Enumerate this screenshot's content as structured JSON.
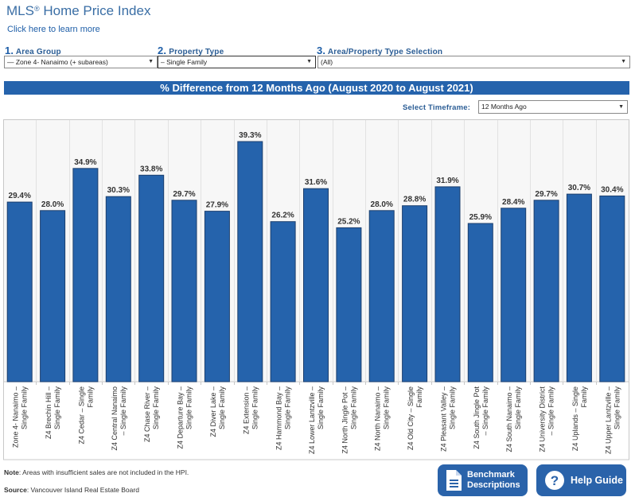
{
  "header": {
    "title": "MLS",
    "title_sup": "®",
    "title_rest": " Home Price Index",
    "learn_link": "Click here to learn more"
  },
  "filters": [
    {
      "num": "1.",
      "label": "Area Group",
      "value": "— Zone 4- Nanaimo (+ subareas)"
    },
    {
      "num": "2.",
      "label": "Property Type",
      "value": "– Single Family"
    },
    {
      "num": "3.",
      "label": "Area/Property Type Selection",
      "value": "(All)"
    }
  ],
  "banner": "% Difference from 12 Months Ago (August 2020 to August 2021)",
  "timeframe": {
    "label": "Select Timeframe:",
    "value": "12 Months Ago"
  },
  "footer": {
    "note_bold": "Note",
    "note_text": ": Areas with insufficient sales are not included in the HPI.",
    "source_bold": "Source",
    "source_text": ": Vancouver Island Real Estate Board"
  },
  "buttons": {
    "benchmark_line1": "Benchmark",
    "benchmark_line2": "Descriptions",
    "help": "Help Guide"
  },
  "colors": {
    "bar": "#2563ac",
    "bar_border": "#1c3f6e",
    "banner": "#2563ac",
    "accent": "#1f5fa8"
  },
  "chart_data": {
    "type": "bar",
    "title": "% Difference from 12 Months Ago (August 2020 to August 2021)",
    "xlabel": "",
    "ylabel": "",
    "ylim": [
      0,
      42
    ],
    "grid": "vertical separators",
    "categories": [
      [
        "Zone 4- Nanaimo –",
        "Single Family"
      ],
      [
        "Z4 Brechin Hill –",
        "Single Family"
      ],
      [
        "Z4 Cedar – Single",
        "Family"
      ],
      [
        "Z4 Central Nanaimo",
        "– Single Family"
      ],
      [
        "Z4 Chase River –",
        "Single Family"
      ],
      [
        "Z4 Departure Bay –",
        "Single Family"
      ],
      [
        "Z4 Diver Lake –",
        "Single Family"
      ],
      [
        "Z4 Extension –",
        "Single Family"
      ],
      [
        "Z4 Hammond Bay –",
        "Single Family"
      ],
      [
        "Z4 Lower Lantzville –",
        "Single Family"
      ],
      [
        "Z4 North Jingle Pot –",
        "Single Family"
      ],
      [
        "Z4 North Nanaimo –",
        "Single Family"
      ],
      [
        "Z4 Old City – Single",
        "Family"
      ],
      [
        "Z4 Pleasant Valley –",
        "Single Family"
      ],
      [
        "Z4 South Jingle Pot",
        "– Single Family"
      ],
      [
        "Z4 South Nanaimo –",
        "Single Family"
      ],
      [
        "Z4 University District",
        "– Single Family"
      ],
      [
        "Z4 Uplands – Single",
        "Family"
      ],
      [
        "Z4 Upper Lantzville –",
        "Single Family"
      ]
    ],
    "values": [
      29.4,
      28.0,
      34.9,
      30.3,
      33.8,
      29.7,
      27.9,
      39.3,
      26.2,
      31.6,
      25.2,
      28.0,
      28.8,
      31.9,
      25.9,
      28.4,
      29.7,
      30.7,
      30.4
    ],
    "labels": [
      "29.4%",
      "28.0%",
      "34.9%",
      "30.3%",
      "33.8%",
      "29.7%",
      "27.9%",
      "39.3%",
      "26.2%",
      "31.6%",
      "25.2%",
      "28.0%",
      "28.8%",
      "31.9%",
      "25.9%",
      "28.4%",
      "29.7%",
      "30.7%",
      "30.4%"
    ]
  }
}
